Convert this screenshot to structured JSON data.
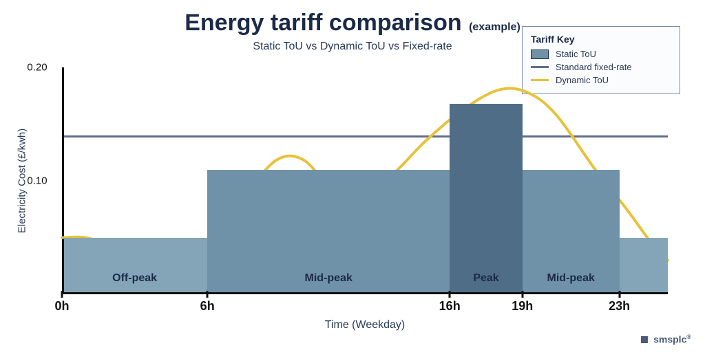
{
  "title": "Energy tariff comparison",
  "title_suffix": "(example)",
  "subtitle": "Static ToU vs Dynamic ToU vs Fixed-rate",
  "axis": {
    "x_title": "Time (Weekday)",
    "y_title": "Electricity Cost (£/kwh)",
    "x_min_h": 0,
    "x_max_h": 25,
    "y_min": 0.0,
    "y_max": 0.2,
    "x_ticks_h": [
      0,
      6,
      16,
      19,
      23
    ],
    "x_tick_labels": [
      "0h",
      "6h",
      "16h",
      "19h",
      "23h"
    ],
    "y_ticks": [
      0.1,
      0.2
    ],
    "y_tick_labels": [
      "0.10",
      "0.20"
    ]
  },
  "colors": {
    "bar_offpeak": "#84a4b7",
    "bar_mid": "#6f92a8",
    "bar_peak": "#4f6d87",
    "bar_mid2": "#6f92a8",
    "bar_offpeak2": "#84a4b7",
    "fixed_rate_line": "#5e6d88",
    "dynamic_curve": "#e7c23a",
    "axis": "#111111",
    "text": "#1b2a47",
    "legend_border": "#7b8aa3",
    "background": "#ffffff"
  },
  "fixed_rate_value": 0.14,
  "bars": [
    {
      "name": "Off-peak",
      "from_h": 0,
      "to_h": 6,
      "value": 0.05,
      "color_key": "bar_offpeak"
    },
    {
      "name": "Mid-peak",
      "from_h": 6,
      "to_h": 16,
      "value": 0.11,
      "color_key": "bar_mid"
    },
    {
      "name": "Peak",
      "from_h": 16,
      "to_h": 19,
      "value": 0.168,
      "color_key": "bar_peak"
    },
    {
      "name": "Mid-peak",
      "from_h": 19,
      "to_h": 23,
      "value": 0.11,
      "color_key": "bar_mid2"
    },
    {
      "name": "",
      "from_h": 23,
      "to_h": 25,
      "value": 0.05,
      "color_key": "bar_offpeak2"
    }
  ],
  "dynamic_curve": {
    "stroke_width": 4,
    "points_h_v": [
      [
        0.0,
        0.05
      ],
      [
        1.3,
        0.048
      ],
      [
        2.6,
        0.025
      ],
      [
        3.6,
        0.01
      ],
      [
        4.4,
        0.01
      ],
      [
        5.4,
        0.032
      ],
      [
        6.8,
        0.067
      ],
      [
        8.0,
        0.1
      ],
      [
        9.0,
        0.12
      ],
      [
        10.0,
        0.118
      ],
      [
        11.2,
        0.092
      ],
      [
        12.3,
        0.088
      ],
      [
        13.6,
        0.105
      ],
      [
        15.0,
        0.135
      ],
      [
        16.5,
        0.162
      ],
      [
        18.0,
        0.18
      ],
      [
        19.2,
        0.178
      ],
      [
        20.4,
        0.158
      ],
      [
        22.0,
        0.11
      ],
      [
        23.3,
        0.075
      ],
      [
        24.5,
        0.04
      ],
      [
        25.0,
        0.03
      ]
    ]
  },
  "legend": {
    "title": "Tariff Key",
    "items": [
      {
        "label": "Static ToU",
        "type": "box",
        "color_key": "bar_mid"
      },
      {
        "label": "Standard fixed-rate",
        "type": "line",
        "color_key": "fixed_rate_line"
      },
      {
        "label": "Dynamic ToU",
        "type": "line",
        "color_key": "dynamic_curve"
      }
    ]
  },
  "brand": "smsplc",
  "brand_suffix": "®"
}
